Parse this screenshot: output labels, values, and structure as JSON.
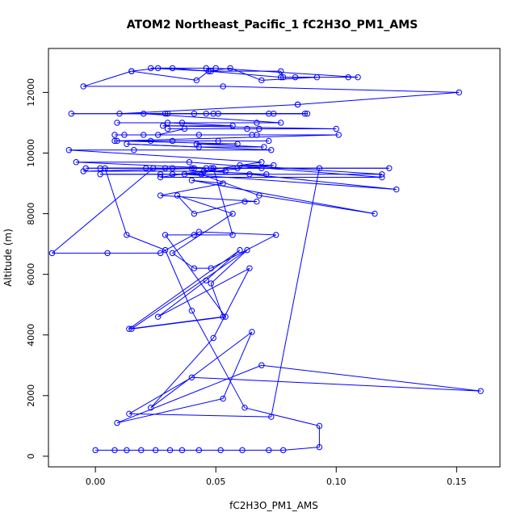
{
  "chart_data": {
    "type": "line",
    "title": "ATOM2 Northeast_Pacific_1 fC2H3O_PM1_AMS",
    "xlabel": "fC2H3O_PM1_AMS",
    "ylabel": "Altitude (m)",
    "xlim": [
      -0.0195,
      0.168
    ],
    "ylim": [
      -350,
      13450
    ],
    "x_ticks": [
      0.0,
      0.05,
      0.1,
      0.15
    ],
    "x_tick_labels": [
      "0.00",
      "0.05",
      "0.10",
      "0.15"
    ],
    "y_ticks": [
      0,
      2000,
      4000,
      6000,
      8000,
      10000,
      12000
    ],
    "y_tick_labels": [
      "0",
      "2000",
      "4000",
      "6000",
      "8000",
      "10000",
      "12000"
    ],
    "grid": false,
    "legend": "none",
    "series_color": "#0000ff",
    "series": [
      {
        "x": [
          0.0,
          0.008,
          0.013,
          0.019,
          0.025,
          0.031,
          0.036,
          0.043,
          0.052,
          0.061,
          0.072,
          0.078,
          0.093,
          0.093,
          0.062,
          0.04,
          0.029,
          0.013,
          0.004,
          0.029,
          0.093,
          0.073,
          0.014,
          0.04,
          0.16,
          0.069,
          0.009,
          0.053,
          0.065,
          0.023,
          0.049,
          0.064,
          0.026,
          0.046,
          0.06,
          0.014,
          0.053,
          0.048,
          0.063,
          0.015,
          0.054,
          0.029,
          0.041,
          0.057,
          0.049,
          -0.004,
          0.021,
          0.024,
          -0.018,
          0.005,
          0.027,
          0.043,
          0.075,
          0.048,
          0.041,
          0.032,
          0.057,
          0.034,
          0.041,
          0.062,
          0.067,
          0.027,
          0.053,
          0.04,
          0.116,
          0.068,
          0.044,
          0.027,
          0.002,
          0.064,
          0.125,
          0.037,
          0.074,
          0.06,
          0.119,
          0.032,
          0.071,
          0.045,
          0.054,
          -0.005,
          0.046,
          0.048,
          0.069,
          0.032,
          0.059,
          0.122,
          0.04,
          0.002,
          0.041,
          0.049,
          -0.008,
          0.039,
          0.119,
          0.027,
          0.069,
          -0.011,
          0.016,
          0.073,
          0.013,
          0.043,
          0.07,
          0.042,
          0.059,
          0.009,
          0.072,
          0.023,
          0.032,
          0.051,
          0.008,
          0.101,
          0.02,
          0.043,
          0.065,
          0.012,
          0.067,
          0.008,
          0.026,
          0.037,
          0.068,
          0.03,
          0.063,
          0.1,
          0.028,
          0.057,
          0.03,
          0.067,
          0.009,
          0.036,
          0.077,
          0.02,
          0.041,
          0.088,
          0.029,
          0.046,
          0.074,
          -0.01,
          0.03,
          0.049,
          0.087,
          0.072,
          0.051,
          0.01,
          0.084,
          0.084,
          0.151,
          0.053,
          -0.005,
          0.015,
          0.042,
          0.047,
          0.056,
          0.069,
          0.092,
          0.078,
          0.077,
          0.048,
          0.023,
          0.032,
          0.047,
          0.077,
          0.083,
          0.105,
          0.109,
          0.05,
          0.046,
          0.026,
          0.015
        ],
        "y": [
          200,
          200,
          200,
          200,
          200,
          200,
          200,
          200,
          200,
          200,
          200,
          200,
          300,
          1000,
          1600,
          4800,
          6800,
          7300,
          9500,
          9500,
          9500,
          1300,
          1400,
          2600,
          2150,
          3000,
          1100,
          1900,
          4100,
          1600,
          3900,
          6200,
          4600,
          5800,
          6800,
          4200,
          4600,
          5700,
          6800,
          4200,
          4600,
          7300,
          7300,
          7300,
          9500,
          9500,
          9500,
          9500,
          6700,
          6700,
          6700,
          7400,
          7300,
          6200,
          6200,
          6700,
          8000,
          8600,
          8000,
          8400,
          8400,
          8600,
          9000,
          9100,
          8000,
          8600,
          9300,
          9300,
          9300,
          9300,
          8800,
          9300,
          9600,
          9600,
          9300,
          9300,
          9300,
          9400,
          9400,
          9400,
          9500,
          9500,
          9500,
          9500,
          9500,
          9500,
          9500,
          9500,
          9500,
          9500,
          9700,
          9700,
          9200,
          9200,
          9700,
          10100,
          10100,
          10100,
          10300,
          10200,
          10200,
          10300,
          10300,
          10400,
          10400,
          10400,
          10400,
          10400,
          10400,
          10600,
          10600,
          10600,
          10600,
          10600,
          10600,
          10600,
          10600,
          10800,
          10800,
          10800,
          10800,
          10800,
          10900,
          10900,
          11000,
          11000,
          11000,
          11000,
          11000,
          11300,
          11300,
          11300,
          11300,
          11300,
          11300,
          11300,
          11300,
          11300,
          11300,
          11300,
          11300,
          11300,
          11600,
          11600,
          12000,
          12200,
          12200,
          12700,
          12400,
          12700,
          12800,
          12400,
          12500,
          12500,
          12700,
          12700,
          12800,
          12800,
          12700,
          12500,
          12500,
          12500,
          12500,
          12800,
          12800,
          12800,
          12700
        ]
      }
    ]
  }
}
